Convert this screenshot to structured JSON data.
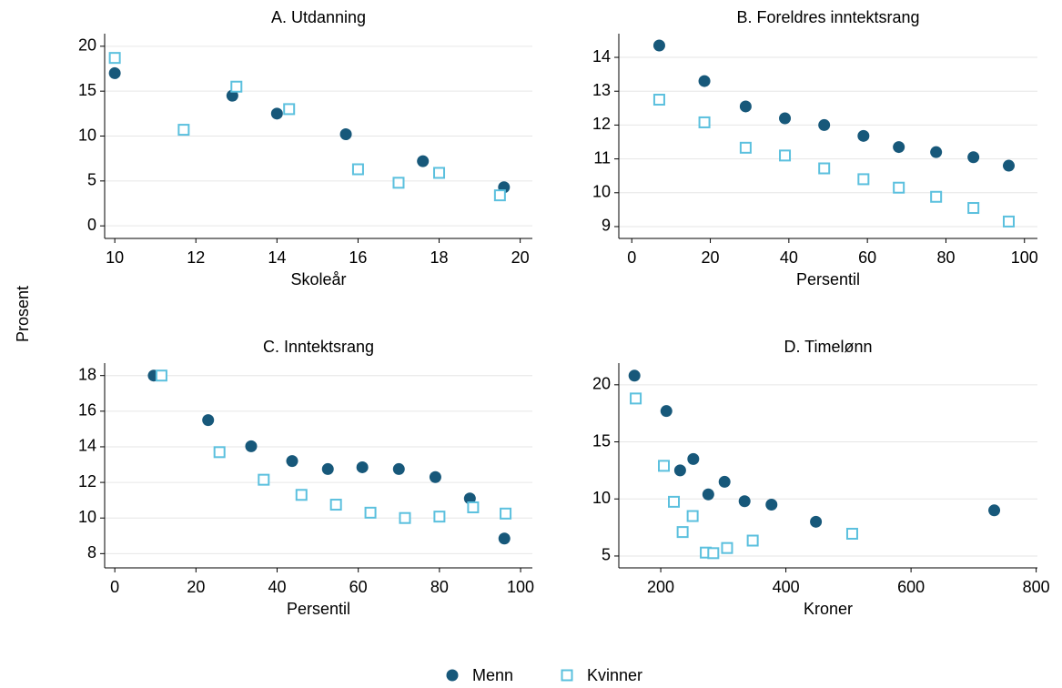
{
  "ylabel": "Prosent",
  "chart_data": [
    {
      "type": "scatter",
      "title": "A. Utdanning",
      "xlabel": "Skoleår",
      "xlim": [
        9.75,
        20.3
      ],
      "ylim": [
        -1.4,
        21.4
      ],
      "xticks": [
        10,
        12,
        14,
        16,
        18,
        20
      ],
      "yticks": [
        0,
        5,
        10,
        15,
        20
      ],
      "grid": true,
      "series": [
        {
          "name": "Menn",
          "color": "#17587a",
          "x": [
            10,
            12.9,
            14,
            15.7,
            17.6,
            19.6
          ],
          "values": [
            17,
            14.5,
            12.5,
            10.2,
            7.2,
            4.3
          ]
        },
        {
          "name": "Kvinner",
          "color": "#5bc0de",
          "x": [
            10,
            11.7,
            13,
            14.3,
            16,
            17,
            18,
            19.5
          ],
          "values": [
            18.7,
            10.7,
            15.5,
            13,
            6.3,
            4.8,
            5.9,
            3.4
          ]
        }
      ]
    },
    {
      "type": "scatter",
      "title": "B. Foreldres inntektsrang",
      "xlabel": "Persentil",
      "xlim": [
        -3.3,
        103.3
      ],
      "ylim": [
        8.65,
        14.7
      ],
      "xticks": [
        0,
        20,
        40,
        60,
        80,
        100
      ],
      "yticks": [
        9,
        10,
        11,
        12,
        13,
        14
      ],
      "grid": true,
      "series": [
        {
          "color": "#17587a",
          "x": [
            7,
            18.5,
            29,
            39,
            49,
            59,
            68,
            77.5,
            87,
            96
          ],
          "values": [
            14.35,
            13.3,
            12.55,
            12.2,
            12,
            11.68,
            11.35,
            11.2,
            11.05,
            10.8
          ]
        },
        {
          "color": "#5bc0de",
          "x": [
            7,
            18.5,
            29,
            39,
            49,
            59,
            68,
            77.5,
            87,
            96
          ],
          "values": [
            12.75,
            12.08,
            11.33,
            11.1,
            10.72,
            10.4,
            10.15,
            9.88,
            9.55,
            9.15
          ]
        }
      ]
    },
    {
      "type": "scatter",
      "title": "C. Inntektsrang",
      "xlabel": "Persentil",
      "xlim": [
        -2.5,
        102.9
      ],
      "ylim": [
        7.2,
        18.7
      ],
      "xticks": [
        0,
        20,
        40,
        60,
        80,
        100
      ],
      "yticks": [
        8,
        10,
        12,
        14,
        16,
        18
      ],
      "grid": true,
      "series": [
        {
          "color": "#17587a",
          "x": [
            9.6,
            23,
            33.6,
            43.7,
            52.5,
            61,
            70,
            79,
            87.5,
            96
          ],
          "values": [
            18,
            15.5,
            14.03,
            13.2,
            12.75,
            12.85,
            12.75,
            12.3,
            11.1,
            8.85
          ]
        },
        {
          "color": "#5bc0de",
          "x": [
            11.5,
            25.8,
            36.7,
            46,
            54.5,
            63,
            71.5,
            80,
            88.3,
            96.3
          ],
          "values": [
            18,
            13.7,
            12.15,
            11.3,
            10.75,
            10.3,
            10,
            10.08,
            10.6,
            10.25
          ]
        }
      ]
    },
    {
      "type": "scatter",
      "title": "D. Timelønn",
      "xlabel": "Kroner",
      "xlim": [
        133,
        802
      ],
      "ylim": [
        3.96,
        21.9
      ],
      "xticks": [
        200,
        400,
        600,
        800
      ],
      "yticks": [
        5,
        10,
        15,
        20
      ],
      "grid": true,
      "series": [
        {
          "color": "#17587a",
          "x": [
            158,
            209,
            231,
            252,
            276,
            302,
            334,
            377,
            448,
            733
          ],
          "values": [
            20.8,
            17.7,
            12.5,
            13.5,
            10.4,
            11.5,
            9.8,
            9.5,
            8,
            9
          ]
        },
        {
          "color": "#5bc0de",
          "x": [
            160,
            205,
            221,
            235,
            251,
            272,
            284,
            306,
            347,
            506
          ],
          "values": [
            18.8,
            12.9,
            9.75,
            7.1,
            8.5,
            5.3,
            5.25,
            5.7,
            6.35,
            6.95
          ]
        }
      ]
    }
  ]
}
